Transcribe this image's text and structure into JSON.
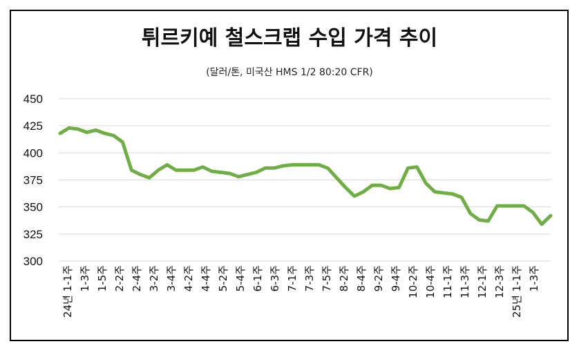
{
  "chart_data": {
    "type": "line",
    "title": "튀르키예 철스크랩 수입 가격 추이",
    "subtitle": "(달러/톤, 미국산 HMS 1/2 80:20 CFR)",
    "ylim": [
      300,
      450
    ],
    "yticks": [
      300,
      325,
      350,
      375,
      400,
      425,
      450
    ],
    "grid": true,
    "line_color": "#70AD47",
    "x_tick_labels": [
      "24년 1-1주",
      "1-3주",
      "1-5주",
      "2-2주",
      "2-4주",
      "3-2주",
      "3-4주",
      "4-2주",
      "4-4주",
      "5-2주",
      "5-4주",
      "6-1주",
      "6-3주",
      "7-1주",
      "7-3주",
      "7-5주",
      "8-2주",
      "8-4주",
      "9-2주",
      "9-4주",
      "10-2주",
      "10-4주",
      "11-1주",
      "11-3주",
      "12-1주",
      "12-3주",
      "25년 1-1주",
      "1-3주"
    ],
    "values": [
      418,
      423,
      422,
      419,
      421,
      418,
      416,
      410,
      384,
      380,
      377,
      384,
      389,
      384,
      384,
      384,
      387,
      383,
      382,
      381,
      378,
      380,
      382,
      386,
      386,
      388,
      389,
      389,
      389,
      389,
      386,
      377,
      368,
      360,
      364,
      370,
      370,
      367,
      368,
      386,
      387,
      372,
      364,
      363,
      362,
      359,
      344,
      338,
      337,
      351,
      351,
      351,
      351,
      345,
      334,
      342
    ]
  }
}
